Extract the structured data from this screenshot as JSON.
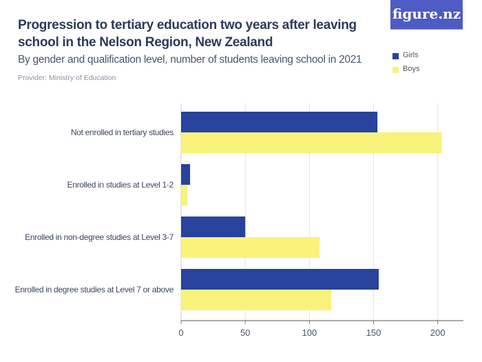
{
  "title": "Progression to tertiary education two years after leaving school in the Nelson Region, New Zealand",
  "subtitle": "By gender and qualification level, number of students leaving school in 2021",
  "provider": "Provider: Ministry of Education",
  "logo": "figure.nz",
  "chart_data": {
    "type": "bar",
    "orientation": "horizontal",
    "categories": [
      "Not enrolled in tertiary studies",
      "Enrolled in studies at Level 1-2",
      "Enrolled in non-degree studies at Level 3-7",
      "Enrolled in degree studies at Level 7 or above"
    ],
    "series": [
      {
        "name": "Girls",
        "color": "#27439b",
        "values": [
          153,
          7,
          50,
          154
        ]
      },
      {
        "name": "Boys",
        "color": "#f9f27a",
        "values": [
          203,
          5,
          108,
          117
        ]
      }
    ],
    "xlim": [
      0,
      220
    ],
    "xticks": [
      0,
      50,
      100,
      150,
      200
    ],
    "grid": true,
    "legend": "top-right"
  }
}
